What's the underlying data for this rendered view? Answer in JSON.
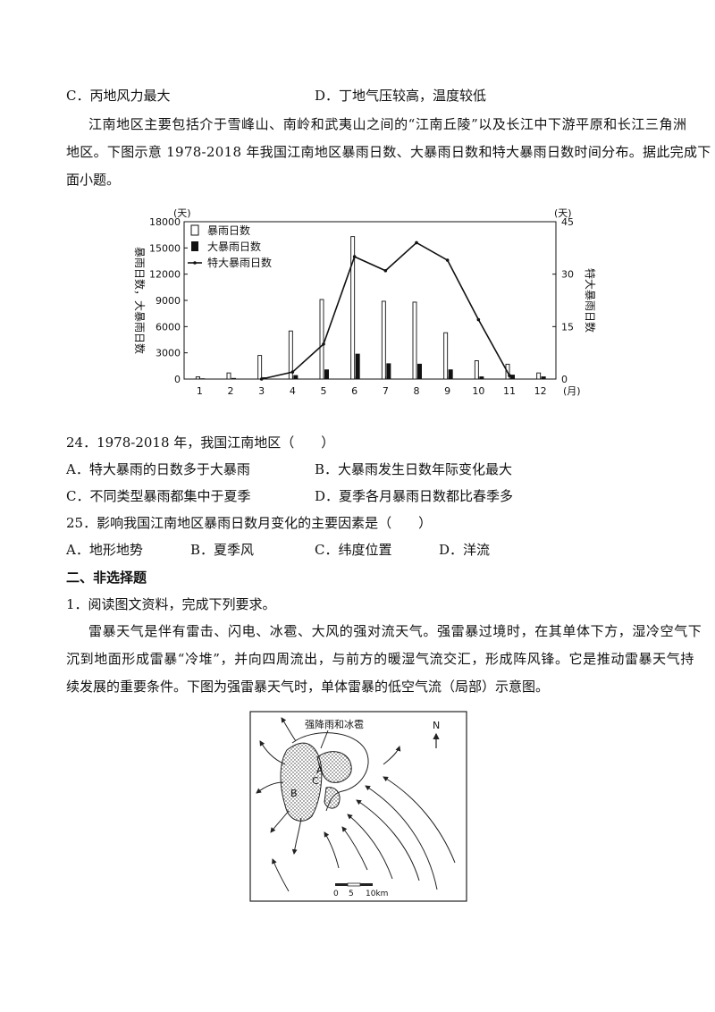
{
  "prev_options": {
    "C": "C．丙地风力最大",
    "D": "D．丁地气压较高，温度较低"
  },
  "intro": {
    "line1": "江南地区主要包括介于雪峰山、南岭和武夷山之间的“江南丘陵”以及长江中下游平原和长江三角洲",
    "line2": "地区。下图示意 1978-2018 年我国江南地区暴雨日数、大暴雨日数和特大暴雨日数时间分布。据此完成下",
    "line3": "面小题。"
  },
  "chart_data": {
    "type": "bar",
    "categories": [
      "1",
      "2",
      "3",
      "4",
      "5",
      "6",
      "7",
      "8",
      "9",
      "10",
      "11",
      "12"
    ],
    "x_unit": "(月)",
    "left_unit": "(天)",
    "right_unit": "(天)",
    "ylabel_left": "暴雨日数，大暴雨日数",
    "ylabel_right": "特大暴雨日数",
    "left_ticks": [
      "0",
      "3000",
      "6000",
      "9000",
      "12000",
      "15000",
      "18000"
    ],
    "right_ticks": [
      "0",
      "15",
      "30",
      "45"
    ],
    "ylim_left": [
      0,
      18000
    ],
    "ylim_right": [
      0,
      45
    ],
    "legend_position": "top-left",
    "series": [
      {
        "name": "暴雨日数",
        "kind": "bar-hollow",
        "axis": "left",
        "values": [
          250,
          700,
          2700,
          5500,
          9100,
          16300,
          8900,
          8800,
          5300,
          2100,
          1700,
          700
        ]
      },
      {
        "name": "大暴雨日数",
        "kind": "bar-filled",
        "axis": "left",
        "values": [
          80,
          120,
          200,
          450,
          1100,
          2900,
          1800,
          1750,
          1100,
          300,
          500,
          300
        ]
      },
      {
        "name": "特大暴雨日数",
        "kind": "line",
        "axis": "right",
        "values": [
          null,
          null,
          0,
          2,
          10,
          35,
          31,
          39,
          34,
          17,
          1,
          null
        ]
      }
    ]
  },
  "q24": {
    "stem": "24．1978-2018 年，我国江南地区（　　）",
    "A": "A．特大暴雨的日数多于大暴雨",
    "B": "B．大暴雨发生日数年际变化最大",
    "C": "C．不同类型暴雨都集中于夏季",
    "D": "D．夏季各月暴雨日数都比春季多"
  },
  "q25": {
    "stem": "25．影响我国江南地区暴雨日数月变化的主要因素是（　　）",
    "A": "A．地形地势",
    "B": "B．夏季风",
    "C": "C．纬度位置",
    "D": "D．洋流"
  },
  "section2": {
    "title": "二、非选择题",
    "q1": "1．阅读图文资料，完成下列要求。",
    "p1": "雷暴天气是伴有雷击、闪电、冰雹、大风的强对流天气。强雷暴过境时，在其单体下方，湿冷空气下",
    "p2": "沉到地面形成雷暴“冷堆”，并向四周流出，与前方的暖湿气流交汇，形成阵风锋。它是推动雷暴天气持",
    "p3": "续发展的重要条件。下图为强雷暴天气时，单体雷暴的低空气流（局部）示意图。"
  },
  "map": {
    "label_rain": "强降雨和冰雹",
    "north": "N",
    "point_a": "A",
    "point_b": "B",
    "point_c": "C",
    "scale_labels": [
      "0",
      "5",
      "10km"
    ]
  }
}
